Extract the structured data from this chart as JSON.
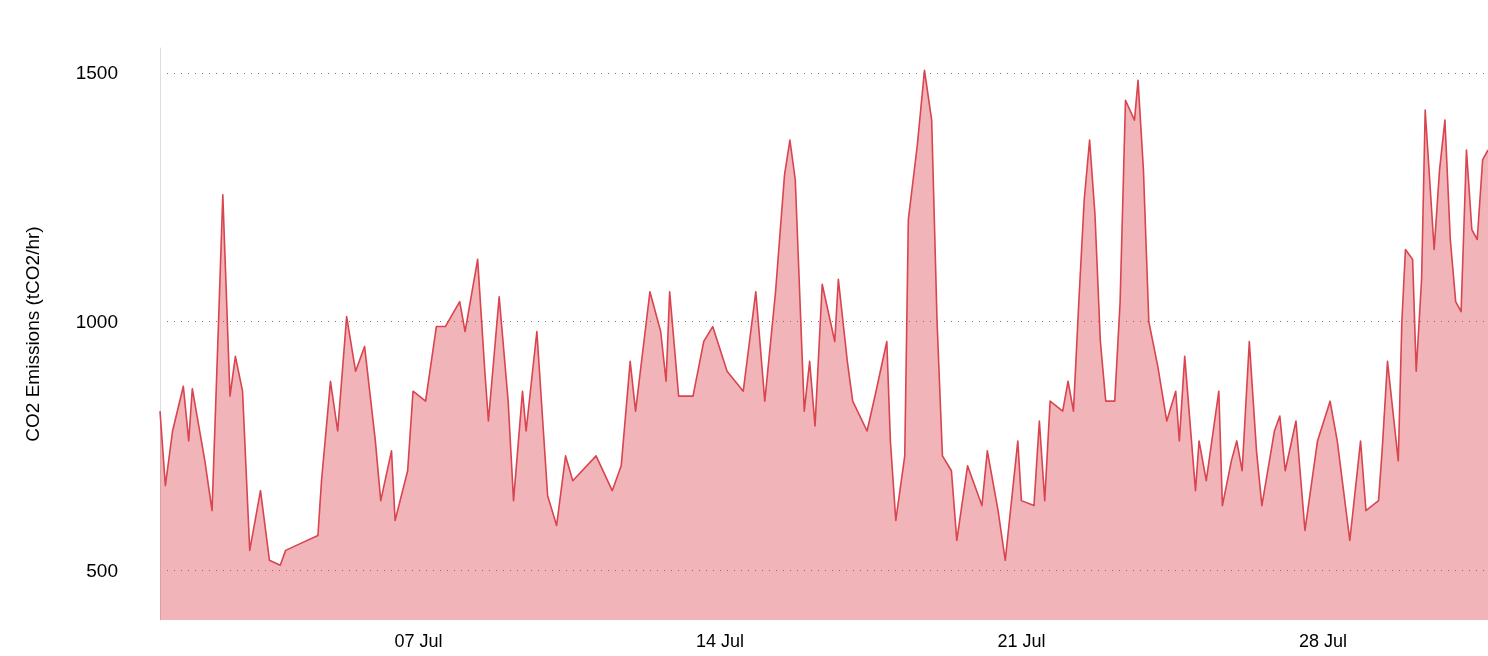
{
  "chart_data": {
    "type": "area",
    "ylabel": "CO2 Emissions (tCO2/hr)",
    "x": [
      "--07-01T00:00",
      "--07-01T03:00",
      "--07-01T07:00",
      "--07-01T13:00",
      "--07-01T16:00",
      "--07-01T18:00",
      "--07-02T01:00",
      "--07-02T05:00",
      "--07-02T09:00",
      "--07-02T11:00",
      "--07-02T15:00",
      "--07-02T18:00",
      "--07-02T22:00",
      "--07-03T02:00",
      "--07-03T08:00",
      "--07-03T13:00",
      "--07-03T19:00",
      "--07-03T22:00",
      "--07-04T04:00",
      "--07-04T16:00",
      "--07-04T18:00",
      "--07-04T23:00",
      "--07-05T03:00",
      "--07-05T08:00",
      "--07-05T13:00",
      "--07-05T18:00",
      "--07-06T00:00",
      "--07-06T03:00",
      "--07-06T09:00",
      "--07-06T11:00",
      "--07-06T18:00",
      "--07-06T21:00",
      "--07-07T04:00",
      "--07-07T10:00",
      "--07-07T15:00",
      "--07-07T23:00",
      "--07-08T02:00",
      "--07-08T09:00",
      "--07-08T13:00",
      "--07-08T15:00",
      "--07-08T21:00",
      "--07-09T02:00",
      "--07-09T05:00",
      "--07-09T10:00",
      "--07-09T12:00",
      "--07-09T18:00",
      "--07-10T00:00",
      "--07-10T05:00",
      "--07-10T10:00",
      "--07-10T14:00",
      "--07-11T03:00",
      "--07-11T12:00",
      "--07-11T17:00",
      "--07-11T22:00",
      "--07-12T01:00",
      "--07-12T09:00",
      "--07-12T15:00",
      "--07-12T18:00",
      "--07-12T20:00",
      "--07-13T01:00",
      "--07-13T09:00",
      "--07-13T15:00",
      "--07-13T20:00",
      "--07-14T04:00",
      "--07-14T13:00",
      "--07-14T20:00",
      "--07-15T01:00",
      "--07-15T07:00",
      "--07-15T12:00",
      "--07-15T15:00",
      "--07-15T18:00",
      "--07-15T23:00",
      "--07-16T02:00",
      "--07-16T05:00",
      "--07-16T09:00",
      "--07-16T16:00",
      "--07-16T18:00",
      "--07-16T23:00",
      "--07-17T02:00",
      "--07-17T10:00",
      "--07-17T15:00",
      "--07-17T21:00",
      "--07-17T23:00",
      "--07-18T02:00",
      "--07-18T07:00",
      "--07-18T09:00",
      "--07-18T14:00",
      "--07-18T18:00",
      "--07-18T22:00",
      "--07-19T01:00",
      "--07-19T04:00",
      "--07-19T09:00",
      "--07-19T12:00",
      "--07-19T18:00",
      "--07-20T02:00",
      "--07-20T05:00",
      "--07-20T11:00",
      "--07-20T15:00",
      "--07-20T22:00",
      "--07-21T00:00",
      "--07-21T07:00",
      "--07-21T10:00",
      "--07-21T13:00",
      "--07-21T16:00",
      "--07-21T23:00",
      "--07-22T02:00",
      "--07-22T05:00",
      "--07-22T08:00",
      "--07-22T11:00",
      "--07-22T14:00",
      "--07-22T17:00",
      "--07-22T20:00",
      "--07-22T23:00",
      "--07-23T04:00",
      "--07-23T07:00",
      "--07-23T10:00",
      "--07-23T15:00",
      "--07-23T17:00",
      "--07-23T20:00",
      "--07-23T23:00",
      "--07-24T04:00",
      "--07-24T09:00",
      "--07-24T14:00",
      "--07-24T16:00",
      "--07-24T19:00",
      "--07-25T01:00",
      "--07-25T03:00",
      "--07-25T07:00",
      "--07-25T14:00",
      "--07-25T16:00",
      "--07-25T21:00",
      "--07-26T00:00",
      "--07-26T03:00",
      "--07-26T07:00",
      "--07-26T11:00",
      "--07-26T14:00",
      "--07-26T21:00",
      "--07-27T00:00",
      "--07-27T03:00",
      "--07-27T09:00",
      "--07-27T14:00",
      "--07-27T21:00",
      "--07-28T04:00",
      "--07-28T08:00",
      "--07-28T15:00",
      "--07-28T21:00",
      "--07-29T00:00",
      "--07-29T07:00",
      "--07-29T09:00",
      "--07-29T12:00",
      "--07-29T18:00",
      "--07-29T20:00",
      "--07-29T22:00",
      "--07-30T02:00",
      "--07-30T04:00",
      "--07-30T07:00",
      "--07-30T09:00",
      "--07-30T14:00",
      "--07-30T17:00",
      "--07-30T20:00",
      "--07-30T23:00",
      "--07-31T02:00",
      "--07-31T05:00",
      "--07-31T08:00",
      "--07-31T11:00",
      "--07-31T14:00",
      "--07-31T17:00",
      "--07-31T20:00"
    ],
    "series": [
      {
        "color": "#d9444f",
        "values": [
          820,
          670,
          780,
          870,
          760,
          865,
          720,
          620,
          1040,
          1255,
          850,
          930,
          860,
          540,
          660,
          520,
          510,
          540,
          550,
          570,
          680,
          880,
          780,
          1010,
          900,
          950,
          760,
          640,
          740,
          600,
          700,
          860,
          840,
          990,
          990,
          1040,
          980,
          1125,
          900,
          800,
          1050,
          840,
          640,
          860,
          780,
          980,
          650,
          590,
          730,
          680,
          730,
          660,
          710,
          920,
          820,
          1060,
          980,
          880,
          1060,
          850,
          850,
          960,
          990,
          900,
          860,
          1060,
          840,
          1060,
          1295,
          1365,
          1285,
          820,
          920,
          790,
          1075,
          960,
          1085,
          920,
          840,
          780,
          860,
          960,
          760,
          600,
          730,
          1205,
          1355,
          1505,
          1405,
          1000,
          730,
          700,
          560,
          710,
          630,
          740,
          620,
          520,
          760,
          640,
          630,
          800,
          640,
          840,
          820,
          880,
          820,
          1040,
          1245,
          1365,
          1215,
          960,
          840,
          840,
          1040,
          1445,
          1405,
          1485,
          1305,
          1000,
          910,
          800,
          860,
          760,
          930,
          660,
          760,
          680,
          860,
          630,
          720,
          760,
          700,
          960,
          740,
          630,
          780,
          810,
          700,
          800,
          580,
          760,
          840,
          760,
          560,
          760,
          620,
          640,
          740,
          920,
          720,
          1000,
          1145,
          1125,
          900,
          1085,
          1425,
          1145,
          1305,
          1405,
          1165,
          1040,
          1020,
          1345,
          1185,
          1165,
          1325,
          1345
        ]
      }
    ],
    "xlim": [
      "--07-01T00:00",
      "--07-31T20:00"
    ],
    "xticks": [
      {
        "value": "--07-07",
        "label": "07 Jul"
      },
      {
        "value": "--07-14",
        "label": "14 Jul"
      },
      {
        "value": "--07-21",
        "label": "21 Jul"
      },
      {
        "value": "--07-28",
        "label": "28 Jul"
      }
    ],
    "ylim": [
      400,
      1550
    ],
    "yticks": [
      500,
      1000,
      1500
    ],
    "grid": "y"
  }
}
